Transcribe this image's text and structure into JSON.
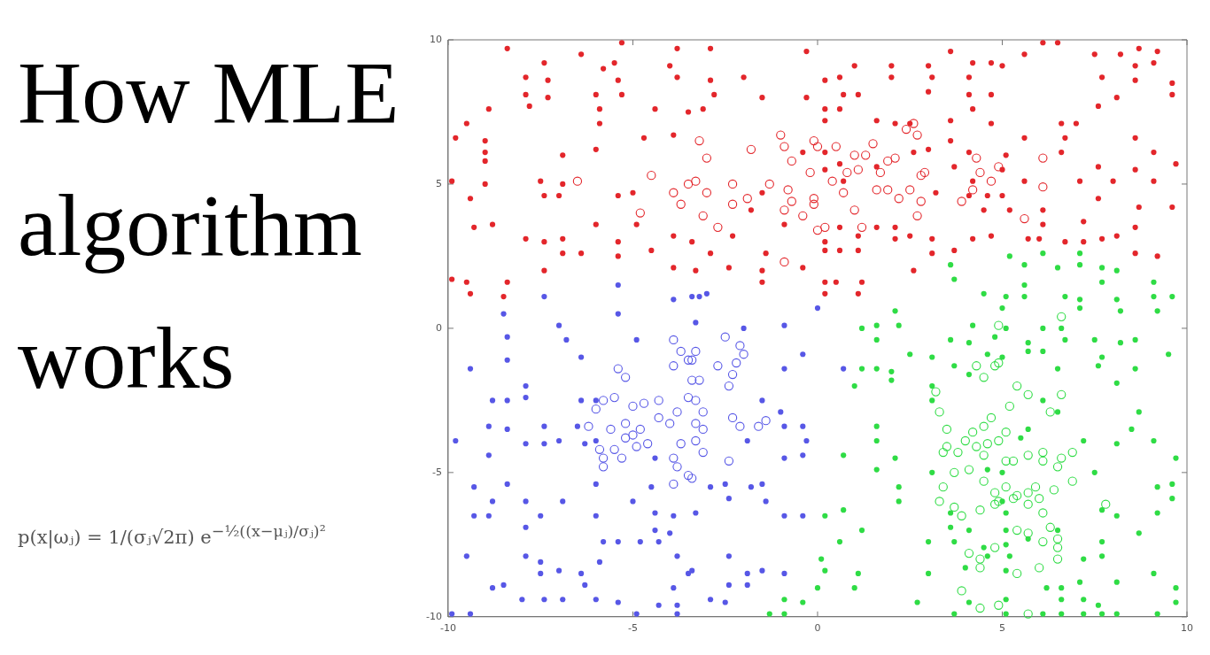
{
  "chart_data": {
    "type": "scatter",
    "title": "How MLE algorithm works",
    "annotations": [
      "p(x|ωⱼ) = 1/(σⱼ√2π) e$^{−½((x−μⱼ)/σⱼ)²}$"
    ],
    "xlim": [
      -10,
      10
    ],
    "ylim": [
      -10,
      10
    ],
    "xticks": [
      -10,
      -5,
      0,
      5,
      10
    ],
    "yticks": [
      -10,
      -5,
      0,
      5,
      10
    ],
    "grid": false,
    "legend": false,
    "marker": "circle",
    "series": [
      {
        "color": "#e3262b",
        "x": [
          -8.4,
          -7.4,
          -7.9,
          -7.3,
          -7.9,
          -7.8,
          -7.3,
          -8.9,
          -9.5,
          -9.8,
          -9.0,
          -9.0,
          -9.0,
          -6.9,
          -6.0,
          -5.9,
          -5.9,
          -6.0,
          -5.8,
          -5.4,
          -5.3,
          -5.5,
          -6.4,
          -5.3,
          -3.8,
          -4.0,
          -3.8,
          -4.4,
          -3.5,
          -3.9,
          -4.7,
          -9.9,
          -9.0,
          -7.5,
          -6.9,
          -9.4,
          -7.4,
          -7.0,
          -5.4,
          -5.0,
          -9.3,
          -8.8,
          -6.0,
          -4.9,
          -7.9,
          -7.4,
          -6.9,
          -5.4,
          -3.9,
          -3.4,
          -6.9,
          -6.4,
          -5.4,
          -4.5,
          -3.9,
          -7.4,
          -9.9,
          -9.5,
          -8.4,
          -9.4,
          -8.5,
          -2.9,
          -0.3,
          1.0,
          2.0,
          3.0,
          0.2,
          0.6,
          2.0,
          3.1,
          3.0,
          0.7,
          1.1,
          -0.3,
          -1.5,
          0.2,
          0.6,
          0.2,
          1.6,
          2.1,
          2.5,
          3.0,
          2.6,
          0.2,
          -0.4,
          0.2,
          0.6,
          1.6,
          0.7,
          -1.8,
          -1.5,
          -0.9,
          0.6,
          1.6,
          2.1,
          -2.3,
          1.1,
          2.1,
          2.5,
          3.1,
          0.2,
          -2.9,
          -1.4,
          0.2,
          0.6,
          1.1,
          3.1,
          -3.3,
          -2.4,
          -1.5,
          -0.4,
          2.6,
          -1.5,
          0.2,
          0.5,
          1.2,
          0.2,
          1.1,
          -2.9,
          -2.8,
          -2.0,
          -3.1,
          3.2,
          3.6,
          5.6,
          6.1,
          6.5,
          7.5,
          8.2,
          8.7,
          9.2,
          4.2,
          4.7,
          5.0,
          8.6,
          9.1,
          4.1,
          7.7,
          8.6,
          9.6,
          4.1,
          4.7,
          8.1,
          9.6,
          4.2,
          7.6,
          3.6,
          4.7,
          6.6,
          7.0,
          3.6,
          5.6,
          6.7,
          8.6,
          6.6,
          4.1,
          5.1,
          9.1,
          3.7,
          5.0,
          7.6,
          8.6,
          9.7,
          4.2,
          5.6,
          7.1,
          8.0,
          9.1,
          4.1,
          4.6,
          5.0,
          7.6,
          4.5,
          5.2,
          6.1,
          8.7,
          9.6,
          6.1,
          7.2,
          8.6,
          4.2,
          4.7,
          5.7,
          6.0,
          6.7,
          7.2,
          7.7,
          8.1,
          8.6,
          9.2,
          3.7
        ],
        "values": [
          9.7,
          9.2,
          8.7,
          8.6,
          8.1,
          7.7,
          8.0,
          7.6,
          7.1,
          6.6,
          6.5,
          6.1,
          5.8,
          6.0,
          8.1,
          7.6,
          7.1,
          6.2,
          9.0,
          8.6,
          8.1,
          9.2,
          9.5,
          9.9,
          9.7,
          9.1,
          8.7,
          7.6,
          7.5,
          6.7,
          6.6,
          5.1,
          5.0,
          5.1,
          5.0,
          4.5,
          4.6,
          4.6,
          4.6,
          4.7,
          3.5,
          3.6,
          3.6,
          3.6,
          3.1,
          3.0,
          3.1,
          3.0,
          3.2,
          3.0,
          2.6,
          2.6,
          2.5,
          2.7,
          2.1,
          2.0,
          1.7,
          1.6,
          1.6,
          1.2,
          1.1,
          9.7,
          9.6,
          9.1,
          9.1,
          9.1,
          8.6,
          8.7,
          8.7,
          8.7,
          8.2,
          8.1,
          8.1,
          8.0,
          8.0,
          7.6,
          7.6,
          7.2,
          7.2,
          7.1,
          7.1,
          6.2,
          6.1,
          6.1,
          6.1,
          5.5,
          5.7,
          5.6,
          5.1,
          4.1,
          4.7,
          3.6,
          3.5,
          3.5,
          3.5,
          3.2,
          3.2,
          3.1,
          3.2,
          3.1,
          3.0,
          2.6,
          2.6,
          2.7,
          2.7,
          2.7,
          2.6,
          2.0,
          2.1,
          2.0,
          2.1,
          2.0,
          1.6,
          1.6,
          1.6,
          1.6,
          1.2,
          1.2,
          8.6,
          8.1,
          8.7,
          7.6,
          4.7,
          9.6,
          9.5,
          9.9,
          9.9,
          9.5,
          9.5,
          9.7,
          9.6,
          9.2,
          9.2,
          9.1,
          9.1,
          9.2,
          8.7,
          8.7,
          8.6,
          8.5,
          8.1,
          8.1,
          8.0,
          8.1,
          7.6,
          7.7,
          7.2,
          7.1,
          7.1,
          7.1,
          6.5,
          6.6,
          6.6,
          6.6,
          6.1,
          6.1,
          6.0,
          6.1,
          5.6,
          5.5,
          5.6,
          5.5,
          5.7,
          5.1,
          5.1,
          5.1,
          5.1,
          5.1,
          4.6,
          4.6,
          4.6,
          4.5,
          4.1,
          4.1,
          4.1,
          4.2,
          4.2,
          3.6,
          3.7,
          3.5,
          3.1,
          3.2,
          3.1,
          3.1,
          3.0,
          3.0,
          3.1,
          3.2,
          2.6,
          2.5,
          2.7
        ]
      },
      {
        "color": "#5757e6",
        "x": [
          -5.4,
          -3.9,
          -3.4,
          -7.4,
          -8.5,
          -7.0,
          -5.4,
          -8.4,
          -6.8,
          -4.9,
          -8.4,
          -6.4,
          -9.4,
          -8.8,
          -8.4,
          -7.9,
          -7.9,
          -6.4,
          -6.0,
          -8.9,
          -8.4,
          -7.4,
          -6.5,
          -7.9,
          -7.4,
          -7.0,
          -6.3,
          -6.0,
          -9.8,
          -8.9,
          -4.4,
          -8.4,
          -6.0,
          -4.5,
          -9.3,
          -8.8,
          -7.9,
          -6.9,
          -5.0,
          -7.5,
          -6.0,
          -4.4,
          -3.9,
          -9.3,
          -8.9,
          -7.9,
          -4.4,
          -4.0,
          -5.8,
          -5.4,
          -4.8,
          -4.3,
          -9.5,
          -7.9,
          -7.5,
          -6.4,
          -7.5,
          -7.0,
          -5.9,
          -3.8,
          -3.5,
          -6.3,
          -3.9,
          -8.8,
          -8.5,
          -8.0,
          -7.4,
          -6.9,
          -6.0,
          -5.4,
          -4.3,
          -3.8,
          -4.9,
          -3.8,
          -9.4,
          -9.9,
          -2.0,
          -0.9,
          -0.4,
          -0.9,
          0.7,
          -1.5,
          -1.0,
          -0.9,
          -0.4,
          -0.3,
          -1.9,
          -0.9,
          -0.4,
          -2.9,
          -2.5,
          -1.8,
          -1.5,
          -2.4,
          -1.4,
          -3.3,
          -0.9,
          -0.4,
          -3.4,
          -1.9,
          -1.5,
          -0.9,
          -2.4,
          -1.9,
          -2.9,
          -2.5,
          -2.4,
          -3.0,
          -3.2,
          -3.3,
          0.0
        ],
        "values": [
          1.5,
          1.0,
          1.1,
          1.1,
          0.5,
          0.1,
          0.5,
          -0.3,
          -0.4,
          -0.4,
          -1.1,
          -1.0,
          -1.4,
          -2.5,
          -2.5,
          -2.4,
          -2.0,
          -2.5,
          -2.5,
          -3.4,
          -3.5,
          -3.4,
          -3.4,
          -4.0,
          -4.0,
          -3.9,
          -4.0,
          -3.9,
          -3.9,
          -4.4,
          -4.5,
          -5.4,
          -5.4,
          -5.5,
          -5.5,
          -6.0,
          -6.0,
          -6.0,
          -6.0,
          -6.5,
          -6.5,
          -6.4,
          -6.5,
          -6.5,
          -6.5,
          -6.9,
          -7.0,
          -7.1,
          -7.4,
          -7.4,
          -7.4,
          -7.4,
          -7.9,
          -7.9,
          -8.1,
          -8.5,
          -8.5,
          -8.4,
          -8.1,
          -7.9,
          -8.5,
          -8.9,
          -9.0,
          -9.0,
          -8.9,
          -9.4,
          -9.4,
          -9.4,
          -9.4,
          -9.5,
          -9.6,
          -9.6,
          -9.9,
          -9.9,
          -9.9,
          -9.9,
          0.0,
          0.1,
          -0.9,
          -1.4,
          -1.4,
          -2.5,
          -2.9,
          -3.4,
          -3.4,
          -3.9,
          -3.9,
          -4.5,
          -4.4,
          -5.5,
          -5.4,
          -5.5,
          -5.4,
          -5.9,
          -6.0,
          -6.4,
          -6.5,
          -6.5,
          -8.4,
          -8.5,
          -8.4,
          -8.5,
          -8.9,
          -8.9,
          -9.4,
          -9.5,
          -7.9,
          1.2,
          1.1,
          0.2,
          0.7
        ]
      },
      {
        "color": "#2fdc45",
        "x": [
          1.2,
          1.6,
          2.2,
          1.6,
          2.5,
          3.1,
          1.2,
          1.6,
          2.0,
          1.0,
          2.0,
          3.1,
          3.1,
          1.6,
          1.6,
          0.7,
          2.1,
          1.6,
          3.1,
          2.2,
          2.2,
          0.7,
          0.2,
          1.2,
          0.6,
          3.0,
          0.1,
          0.2,
          1.1,
          0.0,
          1.0,
          3.0,
          2.7,
          -0.9,
          -0.4,
          -1.3,
          -0.9,
          2.1,
          5.2,
          6.1,
          7.1,
          7.1,
          7.7,
          8.1,
          5.6,
          6.5,
          3.6,
          3.7,
          5.6,
          7.7,
          9.1,
          4.5,
          5.1,
          5.6,
          6.7,
          7.1,
          8.1,
          9.1,
          9.6,
          5.0,
          7.1,
          8.2,
          9.2,
          4.2,
          5.1,
          6.1,
          6.6,
          3.6,
          4.1,
          4.8,
          5.7,
          6.7,
          7.5,
          8.2,
          8.6,
          9.5,
          4.6,
          5.7,
          6.1,
          6.5,
          7.7,
          8.6,
          3.7,
          4.1,
          5.0,
          6.1,
          6.5,
          7.6,
          8.1,
          8.7,
          8.5,
          7.2,
          8.1,
          9.1,
          9.7,
          7.5,
          9.2,
          9.6,
          9.6,
          9.2,
          8.1,
          8.7,
          7.7,
          3.6,
          3.6,
          3.7,
          4.6,
          5.0,
          5.0,
          5.1,
          5.1,
          4.1,
          4.5,
          4.6,
          5.1,
          5.2,
          5.7,
          5.1,
          4.0,
          6.5,
          6.2,
          6.6,
          7.1,
          6.6,
          7.2,
          7.6,
          8.1,
          9.1,
          9.7,
          9.7,
          7.2,
          7.7,
          7.7,
          4.1,
          5.1,
          3.7,
          5.1,
          6.1,
          6.6,
          7.2,
          7.7,
          8.1,
          9.2,
          5.7,
          5.5
        ],
        "values": [
          0.0,
          0.1,
          0.1,
          -0.4,
          -0.9,
          -1.0,
          -1.4,
          -1.4,
          -1.5,
          -2.0,
          -1.8,
          -2.0,
          -2.5,
          -3.4,
          -3.9,
          -4.4,
          -4.5,
          -4.9,
          -5.0,
          -5.5,
          -6.0,
          -6.3,
          -6.5,
          -7.0,
          -7.4,
          -7.4,
          -8.0,
          -8.4,
          -8.5,
          -9.0,
          -9.0,
          -8.5,
          -9.5,
          -9.4,
          -9.5,
          -9.9,
          -9.9,
          0.6,
          2.5,
          2.6,
          2.6,
          2.2,
          2.1,
          2.0,
          2.2,
          2.1,
          2.2,
          1.7,
          1.5,
          1.6,
          1.6,
          1.2,
          1.1,
          1.1,
          1.1,
          1.0,
          1.0,
          1.1,
          1.1,
          0.7,
          0.7,
          0.6,
          0.6,
          0.1,
          0.0,
          0.0,
          0.0,
          -0.4,
          -0.5,
          -0.3,
          -0.5,
          -0.4,
          -0.4,
          -0.5,
          -0.4,
          -0.9,
          -0.9,
          -0.8,
          -0.8,
          -1.4,
          -1.0,
          -1.4,
          -1.3,
          -1.6,
          -1.0,
          -2.5,
          -2.9,
          -1.3,
          -1.9,
          -2.9,
          -3.5,
          -3.9,
          -4.0,
          -3.9,
          -4.5,
          -5.0,
          -5.5,
          -5.4,
          -5.9,
          -6.4,
          -6.5,
          -7.1,
          -6.3,
          -6.4,
          -6.9,
          -7.4,
          -4.9,
          -5.0,
          -6.0,
          -6.4,
          -7.0,
          -7.0,
          -7.6,
          -7.9,
          -7.5,
          -7.9,
          -7.3,
          -8.4,
          -8.3,
          -7.0,
          -9.0,
          -9.0,
          -8.8,
          -9.4,
          -9.4,
          -9.6,
          -8.8,
          -8.5,
          -9.0,
          -9.5,
          -8.0,
          -7.9,
          -7.4,
          -9.5,
          -9.4,
          -9.9,
          -9.9,
          -9.9,
          -9.9,
          -9.9,
          -9.9,
          -9.9,
          -9.9,
          -3.5,
          -3.8
        ]
      },
      {
        "color": "#e3262b",
        "x": [
          -6.5,
          -4.8,
          -4.5,
          -3.9,
          -3.7,
          -3.5,
          -1.0,
          -1.8,
          -0.9,
          -0.7,
          -3.2,
          -3.0,
          -3.3,
          -3.0,
          -2.3,
          -2.3,
          -1.9,
          -3.1,
          -2.7,
          -1.3,
          -0.8,
          -0.7,
          -0.4,
          -0.9,
          -0.1,
          -0.2,
          0.4,
          0.7,
          0.0,
          0.2,
          -0.1,
          0.0,
          0.5,
          1.0,
          1.1,
          0.8,
          1.0,
          1.2,
          1.5,
          1.3,
          1.9,
          2.1,
          1.7,
          1.6,
          1.9,
          2.2,
          2.5,
          2.8,
          2.7,
          2.4,
          2.6,
          2.7,
          2.8,
          2.9,
          -0.9,
          -0.1,
          4.3,
          4.9,
          4.4,
          4.7,
          4.2,
          3.9,
          6.1,
          6.1,
          5.6
        ],
        "values": [
          5.1,
          4.0,
          5.3,
          4.7,
          4.3,
          5.0,
          6.7,
          6.2,
          6.3,
          5.8,
          6.5,
          5.9,
          5.1,
          4.7,
          5.0,
          4.3,
          4.5,
          3.9,
          3.5,
          5.0,
          4.8,
          4.4,
          3.9,
          4.1,
          4.5,
          5.4,
          5.1,
          4.7,
          3.4,
          3.5,
          6.5,
          6.3,
          6.3,
          6.0,
          5.5,
          5.4,
          4.1,
          3.5,
          6.4,
          6.0,
          5.8,
          5.9,
          5.4,
          4.8,
          4.8,
          4.5,
          4.8,
          4.4,
          3.9,
          6.9,
          7.1,
          6.7,
          5.3,
          5.4,
          2.3,
          4.3,
          5.9,
          5.6,
          5.4,
          5.1,
          4.8,
          4.4,
          5.9,
          4.9,
          3.8
        ]
      },
      {
        "color": "#5757e6",
        "x": [
          -3.9,
          -3.7,
          -3.9,
          -3.5,
          -5.4,
          -5.2,
          -5.5,
          -6.0,
          -5.8,
          -6.2,
          -5.9,
          -5.8,
          -5.8,
          -5.5,
          -5.3,
          -5.2,
          -5.0,
          -4.8,
          -4.9,
          -4.6,
          -5.0,
          -4.7,
          -4.3,
          -4.3,
          -4.0,
          -3.8,
          -3.5,
          -3.4,
          -3.7,
          -3.9,
          -3.8,
          -3.5,
          -3.9,
          -5.2,
          -5.6,
          -3.4,
          -3.3,
          -2.5,
          -2.1,
          -2.0,
          -2.2,
          -2.3,
          -2.4,
          -2.7,
          -3.2,
          -3.3,
          -3.1,
          -3.3,
          -3.1,
          -3.3,
          -3.1,
          -2.3,
          -2.1,
          -1.6,
          -1.4,
          -2.4,
          -3.4
        ],
        "values": [
          -0.4,
          -0.8,
          -1.3,
          -1.1,
          -1.4,
          -1.7,
          -2.4,
          -2.8,
          -2.5,
          -3.4,
          -4.2,
          -4.5,
          -4.8,
          -4.2,
          -4.5,
          -3.8,
          -3.7,
          -3.5,
          -4.1,
          -4.0,
          -2.7,
          -2.6,
          -2.5,
          -3.1,
          -3.3,
          -2.9,
          -2.4,
          -1.8,
          -4.0,
          -4.5,
          -4.8,
          -5.1,
          -5.4,
          -3.3,
          -3.5,
          -1.1,
          -0.8,
          -0.3,
          -0.6,
          -0.9,
          -1.2,
          -1.6,
          -2.0,
          -1.3,
          -1.8,
          -2.5,
          -2.9,
          -3.3,
          -3.5,
          -3.9,
          -4.3,
          -3.1,
          -3.4,
          -3.4,
          -3.2,
          -4.6,
          -5.2
        ]
      },
      {
        "color": "#2fdc45",
        "x": [
          6.6,
          4.9,
          4.3,
          4.8,
          4.9,
          4.5,
          5.4,
          5.7,
          5.2,
          4.7,
          4.5,
          4.2,
          4.0,
          3.5,
          3.5,
          3.8,
          4.3,
          4.6,
          5.1,
          4.9,
          4.5,
          5.1,
          5.3,
          5.7,
          6.1,
          6.1,
          6.5,
          6.6,
          6.9,
          6.9,
          6.4,
          5.9,
          5.7,
          5.4,
          5.1,
          4.8,
          4.5,
          4.1,
          3.7,
          3.4,
          3.7,
          3.9,
          4.4,
          4.8,
          4.9,
          5.3,
          5.7,
          6.0,
          6.1,
          5.4,
          5.7,
          6.1,
          6.3,
          6.5,
          6.5,
          6.5,
          6.0,
          5.4,
          4.8,
          4.4,
          4.1,
          4.4,
          3.9,
          4.4,
          4.9,
          5.7,
          7.8,
          6.6,
          6.3,
          3.3,
          3.4,
          3.3,
          3.2
        ],
        "values": [
          0.4,
          0.1,
          -1.3,
          -1.3,
          -1.2,
          -1.7,
          -2.0,
          -2.3,
          -2.7,
          -3.1,
          -3.4,
          -3.6,
          -3.9,
          -3.5,
          -4.1,
          -4.3,
          -4.1,
          -4.0,
          -3.6,
          -3.9,
          -4.4,
          -4.6,
          -4.6,
          -4.4,
          -4.6,
          -4.3,
          -4.8,
          -4.5,
          -4.3,
          -5.3,
          -5.6,
          -5.5,
          -5.7,
          -5.8,
          -5.5,
          -5.7,
          -5.3,
          -4.9,
          -5.0,
          -5.5,
          -6.2,
          -6.5,
          -6.3,
          -6.1,
          -6.0,
          -5.9,
          -6.1,
          -5.9,
          -6.4,
          -7.0,
          -7.1,
          -7.4,
          -6.9,
          -7.3,
          -7.6,
          -8.0,
          -8.3,
          -8.5,
          -7.6,
          -8.0,
          -7.8,
          -8.3,
          -9.1,
          -9.7,
          -9.6,
          -9.9,
          -6.1,
          -2.3,
          -2.9,
          -2.9,
          -4.3,
          -6.0,
          -2.2
        ]
      }
    ]
  }
}
